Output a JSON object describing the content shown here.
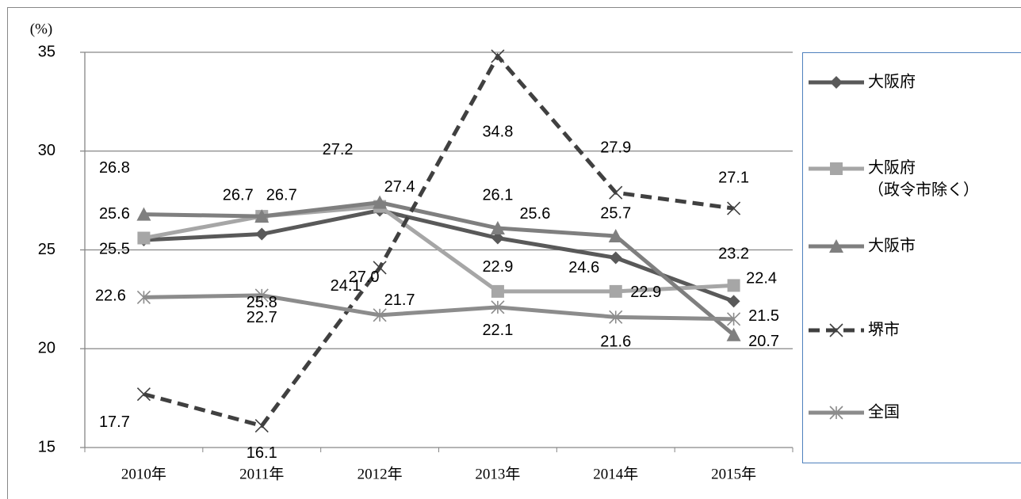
{
  "chart_data": {
    "type": "line",
    "ylabel": "(%)",
    "categories": [
      "2010年",
      "2011年",
      "2012年",
      "2013年",
      "2014年",
      "2015年"
    ],
    "ylim": [
      15,
      35
    ],
    "yticks": [
      15,
      20,
      25,
      30,
      35
    ],
    "grid": true,
    "legend": "right",
    "series": [
      {
        "name": "大阪府",
        "color": "#595959",
        "marker": "diamond",
        "dash": false,
        "values": [
          25.5,
          25.8,
          27.0,
          25.6,
          24.6,
          22.4
        ],
        "value_labels": [
          "25.5",
          "25.8",
          "27.0",
          "25.6",
          "24.6",
          "22.4"
        ]
      },
      {
        "name": "大阪府（政令市除く）",
        "color": "#a6a6a6",
        "marker": "square",
        "dash": false,
        "values": [
          25.6,
          26.7,
          27.2,
          22.9,
          22.9,
          23.2
        ]
      },
      {
        "name": "大阪市",
        "color": "#7f7f7f",
        "marker": "triangle",
        "dash": false,
        "values": [
          26.8,
          26.7,
          27.4,
          26.1,
          25.7,
          20.7
        ]
      },
      {
        "name": "堺市",
        "color": "#404040",
        "marker": "x",
        "dash": true,
        "values": [
          17.7,
          16.1,
          24.1,
          34.8,
          27.9,
          27.1
        ]
      },
      {
        "name": "全国",
        "color": "#8c8c8c",
        "marker": "asterisk",
        "dash": false,
        "values": [
          22.6,
          22.7,
          21.7,
          22.1,
          21.6,
          21.5
        ]
      }
    ]
  }
}
